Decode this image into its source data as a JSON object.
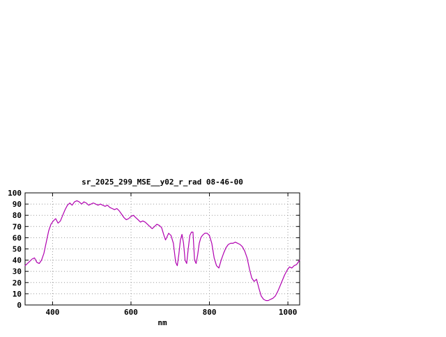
{
  "chart_data": {
    "type": "line",
    "title": "sr_2025_299_MSE__y02_r_rad 08-46-00",
    "xlabel": "nm",
    "ylabel": "",
    "xlim": [
      330,
      1030
    ],
    "ylim": [
      0,
      100
    ],
    "xticks": [
      400,
      600,
      800,
      1000
    ],
    "yticks": [
      0,
      10,
      20,
      30,
      40,
      50,
      60,
      70,
      80,
      90,
      100
    ],
    "grid": true,
    "legend": "none",
    "colors": {
      "line": "#b000b0",
      "grid": "#999999",
      "axis": "#000000",
      "text": "#000000",
      "background": "#ffffff"
    },
    "series": [
      {
        "name": "sr_2025_299_MSE__y02_r_rad",
        "color": "#b000b0",
        "x": [
          330,
          336,
          342,
          348,
          354,
          360,
          366,
          372,
          378,
          384,
          390,
          396,
          402,
          408,
          414,
          420,
          426,
          432,
          438,
          444,
          450,
          456,
          462,
          468,
          474,
          480,
          486,
          492,
          498,
          504,
          510,
          516,
          522,
          528,
          534,
          540,
          546,
          552,
          558,
          564,
          570,
          576,
          582,
          588,
          594,
          600,
          606,
          612,
          618,
          624,
          630,
          636,
          642,
          648,
          654,
          660,
          666,
          672,
          678,
          684,
          688,
          692,
          696,
          702,
          708,
          714,
          718,
          722,
          726,
          730,
          734,
          738,
          742,
          746,
          750,
          754,
          758,
          762,
          766,
          770,
          774,
          778,
          782,
          788,
          794,
          800,
          806,
          812,
          818,
          824,
          830,
          836,
          842,
          848,
          854,
          860,
          866,
          872,
          878,
          884,
          890,
          896,
          902,
          908,
          914,
          920,
          926,
          932,
          938,
          944,
          950,
          956,
          962,
          968,
          974,
          980,
          986,
          992,
          998,
          1004,
          1010,
          1016,
          1022,
          1030
        ],
        "y": [
          35,
          37,
          39,
          41,
          42,
          38,
          37,
          40,
          46,
          56,
          66,
          72,
          75,
          77,
          73,
          75,
          80,
          85,
          89,
          91,
          89,
          92,
          93,
          92,
          90,
          92,
          91,
          89,
          90,
          91,
          90,
          89,
          90,
          89,
          88,
          89,
          87,
          86,
          85,
          86,
          84,
          81,
          78,
          76,
          77,
          79,
          80,
          78,
          76,
          74,
          75,
          74,
          72,
          70,
          68,
          70,
          72,
          71,
          69,
          62,
          58,
          61,
          64,
          62,
          55,
          38,
          35,
          45,
          58,
          63,
          55,
          40,
          37,
          50,
          62,
          65,
          65,
          40,
          37,
          45,
          55,
          60,
          62,
          64,
          64,
          62,
          55,
          42,
          35,
          33,
          40,
          46,
          51,
          54,
          55,
          55,
          56,
          55,
          54,
          52,
          48,
          42,
          32,
          24,
          21,
          23,
          15,
          8,
          5,
          4,
          4,
          5,
          6,
          8,
          12,
          17,
          22,
          27,
          31,
          34,
          33,
          35,
          36,
          40
        ]
      }
    ]
  }
}
